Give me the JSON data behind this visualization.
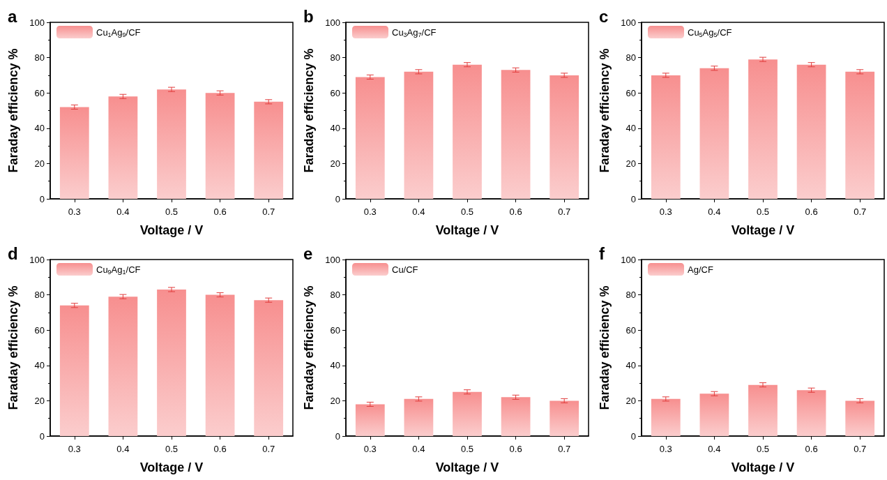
{
  "chart_data": [
    {
      "type": "bar",
      "title": "a",
      "xlabel": "Voltage / V",
      "ylabel": "Faraday efficiency %",
      "categories": [
        "0.3",
        "0.4",
        "0.5",
        "0.6",
        "0.7"
      ],
      "series": [
        {
          "name": "Cu$_{1}$Ag$_{9}$/CF",
          "color": "#f78f8f",
          "values": [
            52,
            58,
            62,
            60,
            55
          ],
          "errors": [
            1.2,
            1.2,
            1.2,
            1.2,
            1.2
          ]
        }
      ],
      "ylim": [
        0,
        100
      ],
      "yticks": [
        0,
        20,
        40,
        60,
        80,
        100
      ],
      "legend": "top left",
      "grid": false
    },
    {
      "type": "bar",
      "title": "b",
      "xlabel": "Voltage / V",
      "ylabel": "Faraday efficiency %",
      "categories": [
        "0.3",
        "0.4",
        "0.5",
        "0.6",
        "0.7"
      ],
      "series": [
        {
          "name": "Cu$_{3}$Ag$_{7}$/CF",
          "color": "#f78f8f",
          "values": [
            69,
            72,
            76,
            73,
            70
          ],
          "errors": [
            1.2,
            1.2,
            1.2,
            1.2,
            1.2
          ]
        }
      ],
      "ylim": [
        0,
        100
      ],
      "yticks": [
        0,
        20,
        40,
        60,
        80,
        100
      ],
      "legend": "top left",
      "grid": false
    },
    {
      "type": "bar",
      "title": "c",
      "xlabel": "Voltage / V",
      "ylabel": "Faraday efficiency %",
      "categories": [
        "0.3",
        "0.4",
        "0.5",
        "0.6",
        "0.7"
      ],
      "series": [
        {
          "name": "Cu$_{5}$Ag$_{5}$/CF",
          "color": "#f78f8f",
          "values": [
            70,
            74,
            79,
            76,
            72
          ],
          "errors": [
            1.2,
            1.2,
            1.2,
            1.2,
            1.2
          ]
        }
      ],
      "ylim": [
        0,
        100
      ],
      "yticks": [
        0,
        20,
        40,
        60,
        80,
        100
      ],
      "legend": "top left",
      "grid": false
    },
    {
      "type": "bar",
      "title": "d",
      "xlabel": "Voltage / V",
      "ylabel": "Faraday efficiency %",
      "categories": [
        "0.3",
        "0.4",
        "0.5",
        "0.6",
        "0.7"
      ],
      "series": [
        {
          "name": "Cu$_{9}$Ag$_{1}$/CF",
          "color": "#f78f8f",
          "values": [
            74,
            79,
            83,
            80,
            77
          ],
          "errors": [
            1.2,
            1.2,
            1.2,
            1.2,
            1.2
          ]
        }
      ],
      "ylim": [
        0,
        100
      ],
      "yticks": [
        0,
        20,
        40,
        60,
        80,
        100
      ],
      "legend": "top left",
      "grid": false
    },
    {
      "type": "bar",
      "title": "e",
      "xlabel": "Voltage / V",
      "ylabel": "Faraday efficiency %",
      "categories": [
        "0.3",
        "0.4",
        "0.5",
        "0.6",
        "0.7"
      ],
      "series": [
        {
          "name": "Cu/CF",
          "color": "#f78f8f",
          "values": [
            18,
            21,
            25,
            22,
            20
          ],
          "errors": [
            1.2,
            1.2,
            1.2,
            1.2,
            1.2
          ]
        }
      ],
      "ylim": [
        0,
        100
      ],
      "yticks": [
        0,
        20,
        40,
        60,
        80,
        100
      ],
      "legend": "top left",
      "grid": false
    },
    {
      "type": "bar",
      "title": "f",
      "xlabel": "Voltage / V",
      "ylabel": "Faraday efficiency %",
      "categories": [
        "0.3",
        "0.4",
        "0.5",
        "0.6",
        "0.7"
      ],
      "series": [
        {
          "name": "Ag/CF",
          "color": "#f78f8f",
          "values": [
            21,
            24,
            29,
            26,
            20
          ],
          "errors": [
            1.2,
            1.2,
            1.2,
            1.2,
            1.2
          ]
        }
      ],
      "ylim": [
        0,
        100
      ],
      "yticks": [
        0,
        20,
        40,
        60,
        80,
        100
      ],
      "legend": "top left",
      "grid": false
    }
  ]
}
